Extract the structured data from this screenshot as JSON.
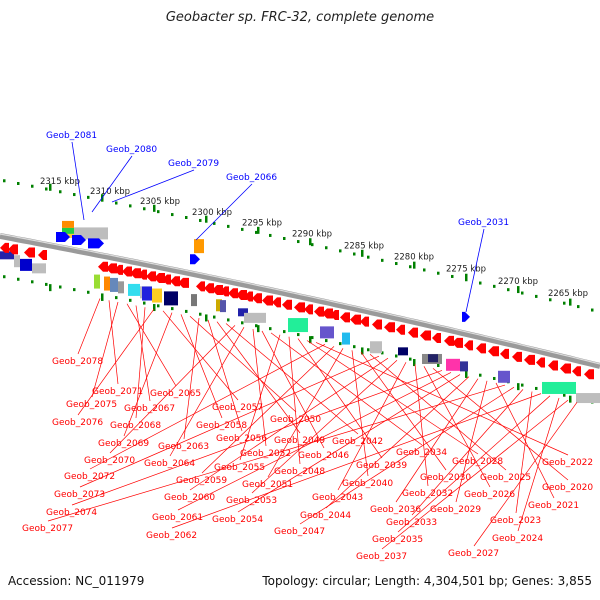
{
  "title": "Geobacter sp. FRC-32, complete genome",
  "footer": {
    "accession": "Accession: NC_011979",
    "topology": "Topology: circular; Length: 4,304,501 bp; Genes: 3,855"
  },
  "colors": {
    "forward": "#0000ff",
    "reverse": "#ff0000",
    "backbone": "#888888",
    "tick": "#008000"
  },
  "scale_labels": [
    "2315 kbp",
    "2310 kbp",
    "2305 kbp",
    "2300 kbp",
    "2295 kbp",
    "2290 kbp",
    "2285 kbp",
    "2280 kbp",
    "2275 kbp",
    "2270 kbp",
    "2265 kbp"
  ],
  "forward_genes": [
    "Geob_2081",
    "Geob_2080",
    "Geob_2079",
    "Geob_2066",
    "Geob_2031"
  ],
  "reverse_genes": [
    "Geob_2078",
    "Geob_2071",
    "Geob_2075",
    "Geob_2065",
    "Geob_2067",
    "Geob_2068",
    "Geob_2076",
    "Geob_2057",
    "Geob_2069",
    "Geob_2058",
    "Geob_2050",
    "Geob_2063",
    "Geob_2056",
    "Geob_2049",
    "Geob_2042",
    "Geob_2070",
    "Geob_2064",
    "Geob_2052",
    "Geob_2046",
    "Geob_2034",
    "Geob_2055",
    "Geob_2048",
    "Geob_2039",
    "Geob_2028",
    "Geob_2022",
    "Geob_2072",
    "Geob_2059",
    "Geob_2051",
    "Geob_2040",
    "Geob_2030",
    "Geob_2025",
    "Geob_2073",
    "Geob_2060",
    "Geob_2053",
    "Geob_2043",
    "Geob_2032",
    "Geob_2026",
    "Geob_2020",
    "Geob_2074",
    "Geob_2061",
    "Geob_2054",
    "Geob_2044",
    "Geob_2036",
    "Geob_2029",
    "Geob_2021",
    "Geob_2077",
    "Geob_2047",
    "Geob_2033",
    "Geob_2023",
    "Geob_2062",
    "Geob_2035",
    "Geob_2024",
    "Geob_2037",
    "Geob_2027"
  ]
}
